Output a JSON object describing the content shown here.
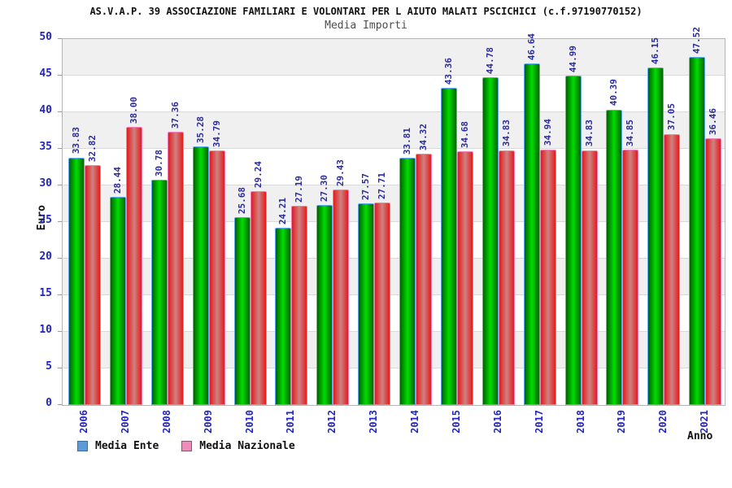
{
  "header": {
    "title": "AS.V.A.P. 39 ASSOCIAZIONE FAMILIARI E VOLONTARI PER L AIUTO MALATI PSCICHICI (c.f.97190770152)",
    "subtitle": "Media Importi"
  },
  "axes": {
    "y_label": "Euro",
    "x_label": "Anno",
    "y_ticks": [
      0,
      5,
      10,
      15,
      20,
      25,
      30,
      35,
      40,
      45,
      50
    ]
  },
  "legend": {
    "position": "bottom-left",
    "items": [
      {
        "label": "Media Ente",
        "swatch_fill": "#5e9ad6",
        "swatch_border": "#3a6ea5"
      },
      {
        "label": "Media Nazionale",
        "swatch_fill": "#ee8cba",
        "swatch_border": "#8a5570"
      }
    ]
  },
  "chart_data": {
    "type": "bar",
    "title": "Media Importi",
    "xlabel": "Anno",
    "ylabel": "Euro",
    "ylim": [
      0,
      50
    ],
    "grid": true,
    "band_step": 5,
    "categories": [
      "2006",
      "2007",
      "2008",
      "2009",
      "2010",
      "2011",
      "2012",
      "2013",
      "2014",
      "2015",
      "2016",
      "2017",
      "2018",
      "2019",
      "2020",
      "2021"
    ],
    "series": [
      {
        "name": "Media Ente",
        "fill_edge": "#006400",
        "fill_center": "#00dd00",
        "outline": "#5fa8f0",
        "values": [
          33.83,
          28.44,
          30.78,
          35.28,
          25.68,
          24.21,
          27.3,
          27.57,
          33.81,
          43.36,
          44.78,
          46.64,
          44.99,
          40.39,
          46.15,
          47.52
        ]
      },
      {
        "name": "Media Nazionale",
        "fill_edge": "#e41b1b",
        "fill_center": "#cf8282",
        "outline": "#f57fb4",
        "values": [
          32.82,
          38.0,
          37.36,
          34.79,
          29.24,
          27.19,
          29.43,
          27.71,
          34.32,
          34.68,
          34.83,
          34.94,
          34.83,
          34.85,
          37.05,
          36.46
        ]
      }
    ]
  },
  "colors": {
    "axis_text": "#2424c0",
    "value_label": "#2b2b9c",
    "band": "#f0f0f0",
    "grid_line": "#d9d9d9",
    "plot_border": "#b4b4b4"
  }
}
